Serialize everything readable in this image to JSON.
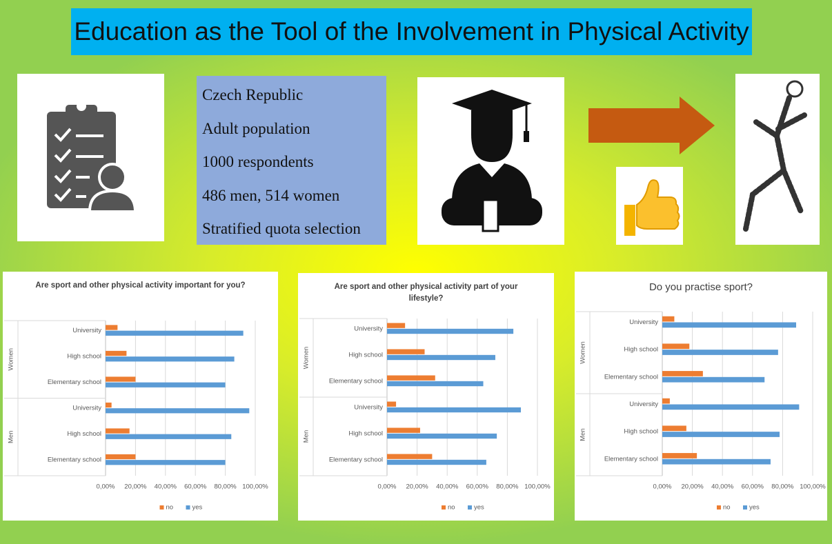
{
  "title": "Education as the Tool of the Involvement in Physical Activity",
  "info": [
    "Czech Republic",
    "Adult population",
    "1000 respondents",
    "486 men, 514 women",
    "Stratified quota selection"
  ],
  "chart_data": [
    {
      "type": "bar",
      "horizontal": true,
      "title": "Are sport and other physical activity important for you?",
      "groups": [
        "Women",
        "Men"
      ],
      "categories": [
        "University",
        "High school",
        "Elementary school",
        "University",
        "High school",
        "Elementary school"
      ],
      "series": [
        {
          "name": "no",
          "color": "#ed7d31",
          "values": [
            8,
            14,
            20,
            4,
            16,
            20
          ]
        },
        {
          "name": "yes",
          "color": "#5b9bd5",
          "values": [
            92,
            86,
            80,
            96,
            84,
            80
          ]
        }
      ],
      "xlim": [
        0,
        100
      ],
      "xticks": [
        {
          "value": 0,
          "label": "0,00%"
        },
        {
          "value": 20,
          "label": "20,00%"
        },
        {
          "value": 40,
          "label": "40,00%"
        },
        {
          "value": 60,
          "label": "60,00%"
        },
        {
          "value": 80,
          "label": "80,00%"
        },
        {
          "value": 100,
          "label": "100,00%"
        }
      ],
      "grid": true,
      "legend": "bottom"
    },
    {
      "type": "bar",
      "horizontal": true,
      "title": "Are sport and other physical activity part of your lifestyle?",
      "groups": [
        "Women",
        "Men"
      ],
      "categories": [
        "University",
        "High school",
        "Elementary school",
        "University",
        "High school",
        "Elementary school"
      ],
      "series": [
        {
          "name": "no",
          "color": "#ed7d31",
          "values": [
            12,
            25,
            32,
            6,
            22,
            30
          ]
        },
        {
          "name": "yes",
          "color": "#5b9bd5",
          "values": [
            84,
            72,
            64,
            89,
            73,
            66
          ]
        }
      ],
      "xlim": [
        0,
        100
      ],
      "xticks": [
        {
          "value": 0,
          "label": "0,00%"
        },
        {
          "value": 20,
          "label": "20,00%"
        },
        {
          "value": 40,
          "label": "40,00%"
        },
        {
          "value": 60,
          "label": "60,00%"
        },
        {
          "value": 80,
          "label": "80,00%"
        },
        {
          "value": 100,
          "label": "100,00%"
        }
      ],
      "grid": true,
      "legend": "bottom"
    },
    {
      "type": "bar",
      "horizontal": true,
      "title": "Do you practise sport?",
      "groups": [
        "Women",
        "Men"
      ],
      "categories": [
        "University",
        "High school",
        "Elementary school",
        "University",
        "High school",
        "Elementary school"
      ],
      "series": [
        {
          "name": "no",
          "color": "#ed7d31",
          "values": [
            8,
            18,
            27,
            5,
            16,
            23
          ]
        },
        {
          "name": "yes",
          "color": "#5b9bd5",
          "values": [
            89,
            77,
            68,
            91,
            78,
            72
          ]
        }
      ],
      "xlim": [
        0,
        100
      ],
      "xticks": [
        {
          "value": 0,
          "label": "0,00%"
        },
        {
          "value": 20,
          "label": "20,00%"
        },
        {
          "value": 40,
          "label": "40,00%"
        },
        {
          "value": 60,
          "label": "60,00%"
        },
        {
          "value": 80,
          "label": "80,00%"
        },
        {
          "value": 100,
          "label": "100,00%"
        }
      ],
      "grid": true,
      "legend": "bottom"
    }
  ]
}
